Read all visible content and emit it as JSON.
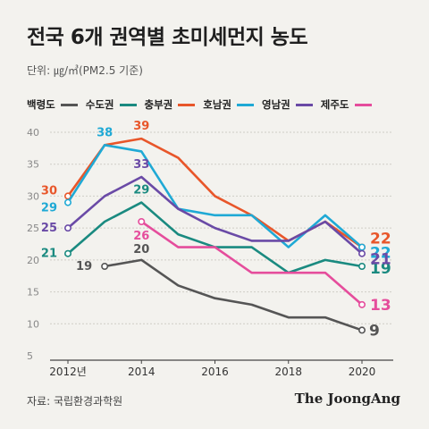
{
  "title": "전국 6개 권역별 초미세먼지 농도",
  "unit": "단위: ㎍/㎥(PM2.5 기준)",
  "source": "자료: 국립환경과학원",
  "brand": "The JoongAng",
  "chart_data": {
    "type": "line",
    "x": [
      2012,
      2013,
      2014,
      2015,
      2016,
      2017,
      2018,
      2019,
      2020
    ],
    "x_tick_labels": [
      "2012년",
      "2014",
      "2016",
      "2018",
      "2020"
    ],
    "y_ticks": [
      "5",
      "10",
      "15",
      "20",
      "25",
      "30",
      "35",
      "40"
    ],
    "ylim": [
      5,
      40
    ],
    "grid": true,
    "legend_position": "top",
    "series": [
      {
        "name": "백령도",
        "color": "#555555",
        "values": [
          null,
          19,
          20,
          16,
          14,
          13,
          11,
          11,
          9
        ],
        "labels": [
          {
            "index": 1,
            "text": "19"
          },
          {
            "index": 2,
            "text": "20"
          },
          {
            "index": 8,
            "text": "9"
          }
        ]
      },
      {
        "name": "수도권",
        "color": "#1a8a80",
        "values": [
          21,
          26,
          29,
          24,
          22,
          22,
          18,
          20,
          19
        ],
        "labels": [
          {
            "index": 0,
            "text": "21"
          },
          {
            "index": 2,
            "text": "29"
          },
          {
            "index": 8,
            "text": "19"
          }
        ]
      },
      {
        "name": "충부권",
        "color": "#e8562a",
        "values": [
          30,
          38,
          39,
          36,
          30,
          27,
          23,
          26,
          22
        ],
        "labels": [
          {
            "index": 0,
            "text": "30"
          },
          {
            "index": 2,
            "text": "39"
          },
          {
            "index": 8,
            "text": "22"
          }
        ]
      },
      {
        "name": "호남권",
        "color": "#1fa9d5",
        "values": [
          29,
          38,
          37,
          28,
          27,
          27,
          22,
          27,
          22
        ],
        "labels": [
          {
            "index": 0,
            "text": "29"
          },
          {
            "index": 1,
            "text": "38"
          },
          {
            "index": 8,
            "text": "22"
          }
        ]
      },
      {
        "name": "영남권",
        "color": "#6a4aa6",
        "values": [
          25,
          30,
          33,
          28,
          25,
          23,
          23,
          26,
          21
        ],
        "labels": [
          {
            "index": 0,
            "text": "25"
          },
          {
            "index": 2,
            "text": "33"
          },
          {
            "index": 8,
            "text": "21"
          }
        ]
      },
      {
        "name": "제주도",
        "color": "#e54d9c",
        "values": [
          null,
          null,
          26,
          22,
          22,
          18,
          18,
          18,
          13
        ],
        "labels": [
          {
            "index": 2,
            "text": "26"
          },
          {
            "index": 8,
            "text": "13"
          }
        ]
      }
    ]
  }
}
